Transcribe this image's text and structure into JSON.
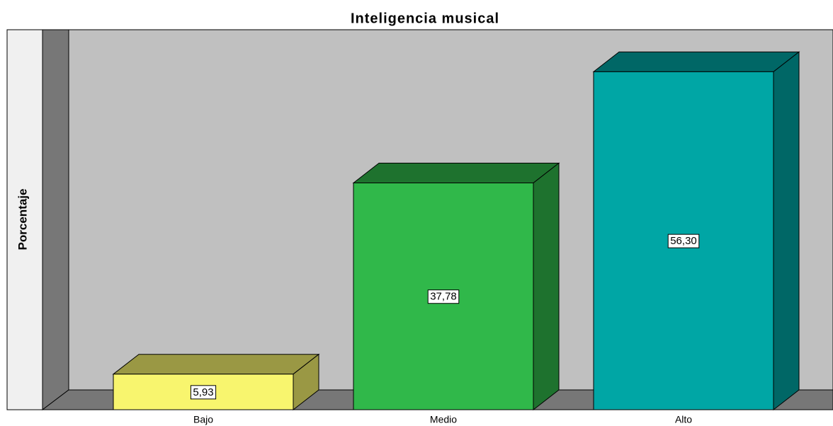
{
  "chart_data": {
    "type": "bar3d",
    "title": "Inteligencia musical",
    "y_label": "Porcentaje",
    "categories": [
      "Bajo",
      "Medio",
      "Alto"
    ],
    "values": [
      5.93,
      37.78,
      56.3
    ],
    "value_labels": [
      "5,93",
      "37,78",
      "56,30"
    ],
    "colors": [
      "#f8f56e",
      "#30b84a",
      "#00a6a5"
    ],
    "ylim": [
      0,
      60
    ]
  }
}
